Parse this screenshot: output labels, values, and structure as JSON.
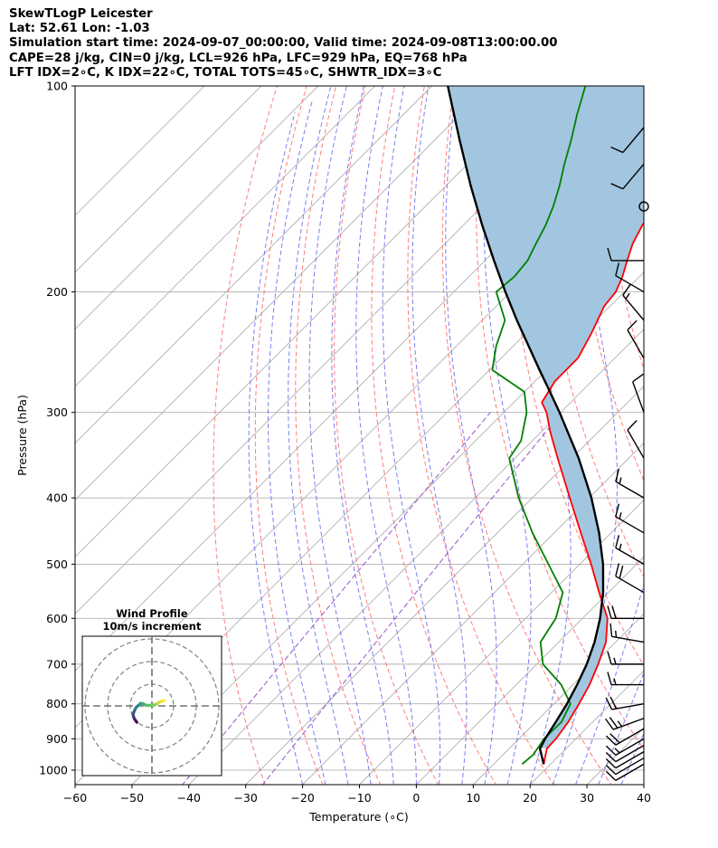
{
  "header": {
    "line1": "SkewTLogP Leicester",
    "line2": "Lat: 52.61   Lon: -1.03",
    "line3": "Simulation start time: 2024-09-07_00:00:00, Valid time: 2024-09-08T13:00:00.00",
    "line4": "CAPE=28 j/kg, CIN=0 j/kg, LCL=926 hPa, LFC=929 hPa, EQ=768 hPa",
    "line5": "LFT IDX=2∘C, K IDX=22∘C, TOTAL TOTS=45∘C, SHWTR_IDX=3∘C"
  },
  "chart_data": {
    "type": "line",
    "subtype": "skew-t log-p",
    "xlabel": "Temperature (∘C)",
    "ylabel": "Pressure (hPa)",
    "xlim": [
      -60,
      40
    ],
    "ylim": [
      1050,
      100
    ],
    "y_scale": "log",
    "x_ticks": [
      -60,
      -50,
      -40,
      -30,
      -20,
      -10,
      0,
      10,
      20,
      30,
      40
    ],
    "x_tick_labels": [
      "−60",
      "−50",
      "−40",
      "−30",
      "−20",
      "−10",
      "0",
      "10",
      "20",
      "30",
      "40"
    ],
    "y_ticks": [
      1000,
      900,
      800,
      700,
      600,
      500,
      400,
      300,
      200,
      100
    ],
    "y_tick_labels": [
      "1000",
      "900",
      "800",
      "700",
      "600",
      "500",
      "400",
      "300",
      "200",
      "100"
    ],
    "grid": true,
    "colors": {
      "temperature": "#ff0000",
      "dewpoint": "#008000",
      "parcel": "#000000",
      "cape_fill": "#a2c6e0",
      "dry_adiabat": "#ff6666",
      "moist_adiabat": "#6666ee",
      "mixing_ratio": "#9955cc",
      "isotherm": "#b0b0b0"
    },
    "series": [
      {
        "role": "temperature",
        "pressure": [
          980,
          930,
          900,
          850,
          800,
          750,
          700,
          650,
          600,
          550,
          500,
          450,
          400,
          350,
          320,
          300,
          290,
          270,
          250,
          230,
          210,
          200,
          190,
          180,
          170,
          160,
          150,
          140,
          130,
          120,
          110,
          100
        ],
        "temp": [
          18.8,
          16.6,
          16.5,
          15.7,
          14.4,
          12.9,
          10.8,
          8.3,
          4.4,
          -1.6,
          -8.0,
          -15.3,
          -23.4,
          -32.5,
          -38.5,
          -42.5,
          -45.1,
          -46.5,
          -46.5,
          -48.5,
          -51.0,
          -51.5,
          -53.0,
          -55.0,
          -57.0,
          -58.5,
          -59.5,
          -61.5,
          -64.5,
          -65.5,
          -66.0,
          -66.0
        ]
      },
      {
        "role": "dewpoint",
        "pressure": [
          980,
          950,
          900,
          850,
          800,
          750,
          700,
          650,
          600,
          550,
          500,
          450,
          400,
          350,
          330,
          300,
          280,
          260,
          240,
          220,
          200,
          190,
          180,
          170,
          160,
          150,
          140,
          130,
          120,
          110,
          100
        ],
        "dewpoint": [
          15.0,
          15.3,
          14.4,
          14.5,
          12.9,
          7.9,
          1.1,
          -3.2,
          -4.7,
          -8.0,
          -15.5,
          -23.8,
          -32.4,
          -41.0,
          -42.0,
          -46.0,
          -50.0,
          -59.5,
          -63.0,
          -66.0,
          -72.5,
          -72.0,
          -72.5,
          -74.0,
          -75.5,
          -77.5,
          -80.0,
          -83.0,
          -86.0,
          -89.5,
          -93.0
        ]
      },
      {
        "role": "parcel",
        "pressure": [
          980,
          930,
          900,
          850,
          800,
          750,
          700,
          650,
          600,
          550,
          500,
          450,
          400,
          350,
          300,
          280,
          260,
          240,
          220,
          200,
          180,
          160,
          140,
          120,
          100
        ],
        "temp": [
          18.8,
          15.4,
          14.6,
          13.5,
          12.3,
          10.7,
          8.8,
          6.3,
          3.1,
          -0.9,
          -5.9,
          -12.1,
          -19.6,
          -28.8,
          -40.2,
          -45.5,
          -51.2,
          -57.3,
          -63.9,
          -70.9,
          -78.4,
          -86.6,
          -95.6,
          -105.6,
          -117.2
        ]
      }
    ],
    "wind_barbs": {
      "pressure": [
        980,
        960,
        940,
        920,
        900,
        870,
        840,
        800,
        750,
        700,
        650,
        600,
        550,
        500,
        450,
        400,
        350,
        300,
        250,
        220,
        200,
        180,
        150,
        130,
        115
      ],
      "speed_kt": [
        14,
        14,
        14,
        14,
        16,
        20,
        25,
        20,
        15,
        15,
        15,
        20,
        20,
        15,
        15,
        15,
        10,
        10,
        10,
        15,
        10,
        10,
        0,
        10,
        10
      ],
      "direction_deg": [
        240,
        240,
        240,
        240,
        240,
        240,
        250,
        260,
        270,
        270,
        280,
        270,
        300,
        300,
        300,
        300,
        330,
        340,
        330,
        320,
        300,
        270,
        0,
        220,
        220
      ]
    },
    "hodograph": {
      "title": "Wind Profile",
      "subtitle": "10m/s increment",
      "u": [
        -3.4,
        -3.7,
        -3.9,
        -4.1,
        -4.2,
        -4.2,
        -4.0,
        -3.8,
        -3.6,
        -3.2,
        -2.8,
        -2.6,
        -2.0,
        -1.5,
        -0.8,
        0.0,
        0.8,
        1.3,
        1.8,
        2.3,
        2.8
      ],
      "v": [
        -3.7,
        -3.3,
        -3.0,
        -2.6,
        -2.2,
        -1.7,
        -1.2,
        -0.8,
        -0.4,
        0.0,
        0.3,
        0.6,
        0.5,
        0.2,
        0.1,
        0.2,
        0.3,
        0.6,
        0.9,
        1.1,
        1.2
      ]
    }
  }
}
